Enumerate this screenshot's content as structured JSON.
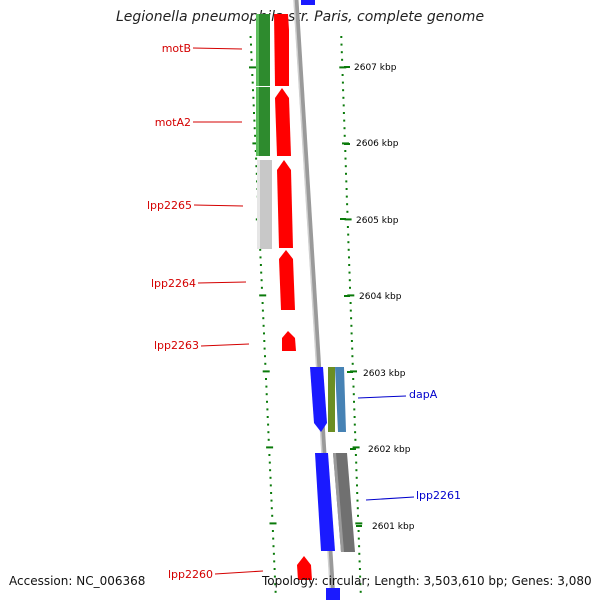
{
  "title": "Legionella pneumophila str. Paris, complete genome",
  "footer": {
    "accession": "Accession: NC_006368",
    "topology": "Topology: circular; Length: 3,503,610 bp; Genes: 3,080"
  },
  "colors": {
    "label_red": "#d40000",
    "label_blue": "#0000cc",
    "tick_green": "#0a7a0a",
    "gene_green": "#2e8b2e",
    "gene_red": "#ff0000",
    "gene_blue": "#1a1aff",
    "gene_gray": "#c8c8c8",
    "gene_darkgray": "#707070",
    "gene_olive": "#6b8e23",
    "gene_steel": "#4682b4",
    "backbone": "#888888"
  },
  "scale_labels": [
    "2607 kbp",
    "2606 kbp",
    "2605 kbp",
    "2604 kbp",
    "2603 kbp",
    "2602 kbp",
    "2601 kbp"
  ],
  "gene_labels": [
    {
      "text": "motB",
      "color": "red"
    },
    {
      "text": "motA2",
      "color": "red"
    },
    {
      "text": "lpp2265",
      "color": "red"
    },
    {
      "text": "lpp2264",
      "color": "red"
    },
    {
      "text": "lpp2263",
      "color": "red"
    },
    {
      "text": "lpp2260",
      "color": "red"
    },
    {
      "text": "dapA",
      "color": "blue"
    },
    {
      "text": "lpp2261",
      "color": "blue"
    }
  ]
}
